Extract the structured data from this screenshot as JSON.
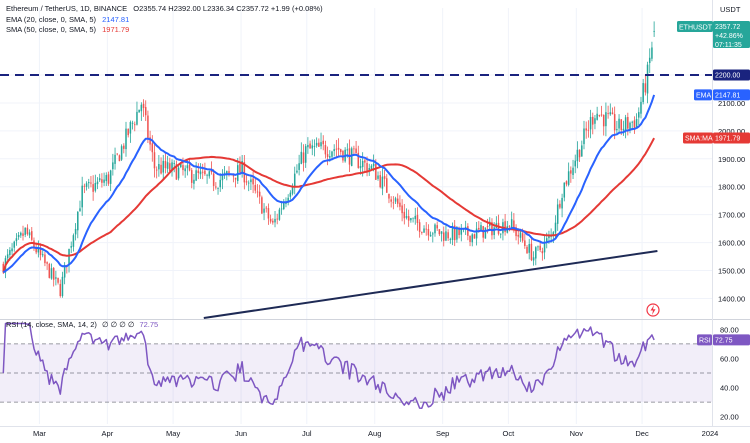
{
  "header": {
    "symbol": "Ethereum / TetherUS, 1D, BINANCE",
    "ohlc": "O2355.74  H2392.00  L2336.34  C2357.72  +1.99 (+0.08%)",
    "ema_label": "EMA (20, close, 0, SMA, 5)",
    "ema_value": "2147.81",
    "sma_label": "SMA (50, close, 0, SMA, 5)",
    "sma_value": "1971.79",
    "rsi_label": "RSI (14, close, SMA, 14, 2)",
    "rsi_placeholders": "∅ ∅ ∅ ∅",
    "rsi_value": "72.75"
  },
  "price_axis": {
    "currency": "USDT",
    "tags": {
      "symbol": "ETHUSDT",
      "price": "2357.72",
      "change": "+42.86%",
      "countdown": "07:11:35",
      "level": "2200.00",
      "ema": "EMA",
      "ema_value": "2147.81",
      "sma": "SMA:MA",
      "sma_value": "1971.79"
    },
    "rsi_tag": "RSI",
    "rsi_tag_value": "72.75"
  },
  "colors": {
    "up": "#26a69a",
    "down": "#ef5350",
    "ema": "#2962ff",
    "sma": "#e53935",
    "rsi": "#7e57c2",
    "level_line": "#1a237e",
    "trendline": "#1e2a55"
  },
  "chart_data": [
    {
      "type": "candlestick",
      "title": "Ethereum / TetherUS, 1D, BINANCE",
      "y_ticks": [
        1400,
        1500,
        1600,
        1700,
        1800,
        1900,
        2000,
        2100,
        2200
      ],
      "ylim": [
        1330,
        2440
      ],
      "x_ticks": [
        "Mar",
        "Apr",
        "May",
        "Jun",
        "Jul",
        "Aug",
        "Sep",
        "Oct",
        "Nov",
        "Dec",
        "2024"
      ],
      "close_anchors": [
        {
          "x": "Feb 12",
          "y": 1520
        },
        {
          "x": "Feb 22",
          "y": 1640
        },
        {
          "x": "Mar 10",
          "y": 1430
        },
        {
          "x": "Mar 20",
          "y": 1780
        },
        {
          "x": "Apr 01",
          "y": 1830
        },
        {
          "x": "Apr 16",
          "y": 2100
        },
        {
          "x": "Apr 22",
          "y": 1870
        },
        {
          "x": "May 01",
          "y": 1860
        },
        {
          "x": "May 20",
          "y": 1820
        },
        {
          "x": "Jun 01",
          "y": 1860
        },
        {
          "x": "Jun 15",
          "y": 1660
        },
        {
          "x": "Jun 30",
          "y": 1930
        },
        {
          "x": "Jul 14",
          "y": 1940
        },
        {
          "x": "Jul 31",
          "y": 1860
        },
        {
          "x": "Aug 16",
          "y": 1680
        },
        {
          "x": "Sep 01",
          "y": 1630
        },
        {
          "x": "Sep 14",
          "y": 1630
        },
        {
          "x": "Oct 01",
          "y": 1670
        },
        {
          "x": "Oct 12",
          "y": 1550
        },
        {
          "x": "Oct 20",
          "y": 1620
        },
        {
          "x": "Oct 25",
          "y": 1790
        },
        {
          "x": "Nov 09",
          "y": 2070
        },
        {
          "x": "Nov 20",
          "y": 2010
        },
        {
          "x": "Nov 28",
          "y": 2040
        },
        {
          "x": "Dec 03",
          "y": 2200
        },
        {
          "x": "Dec 06",
          "y": 2357.72
        }
      ],
      "series": [
        {
          "name": "EMA (20, close, 0, SMA, 5)",
          "color": "#2962ff"
        },
        {
          "name": "SMA (50, close, 0, SMA, 5)",
          "color": "#e53935"
        }
      ],
      "annotations": {
        "horizontal_level": 2200,
        "trendline": [
          {
            "x": "May 15",
            "y": 1330
          },
          {
            "x": "Dec 08",
            "y": 1570
          }
        ]
      }
    },
    {
      "type": "line",
      "title": "RSI (14, close, SMA, 14, 2)",
      "y_ticks": [
        20,
        40,
        60,
        80
      ],
      "ylim": [
        15,
        85
      ],
      "band": [
        30,
        70
      ],
      "midline": 50,
      "last": 72.75
    }
  ]
}
